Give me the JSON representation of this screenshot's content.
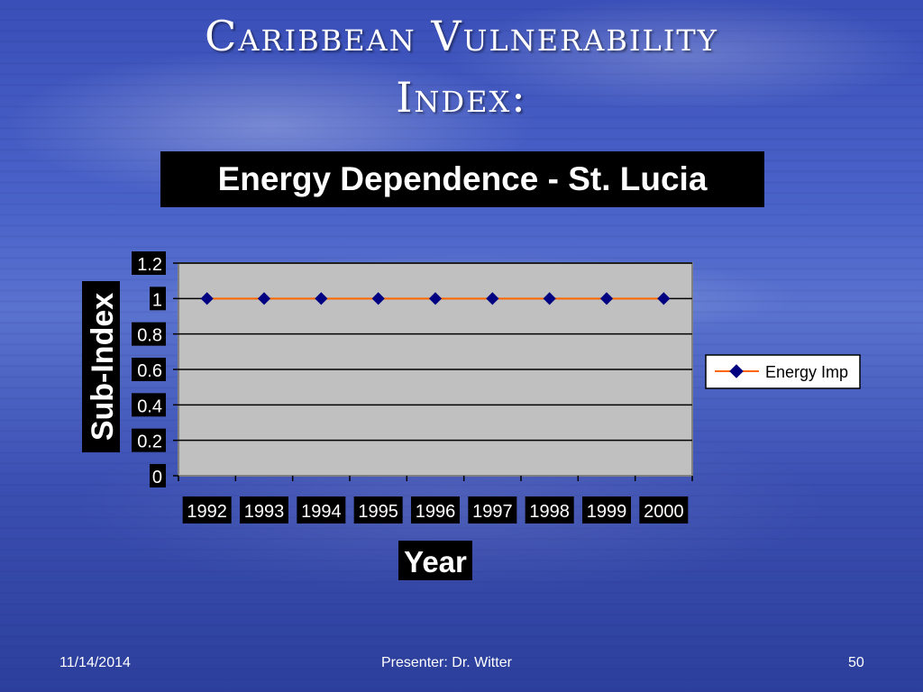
{
  "slide": {
    "title_line1": "Caribbean Vulnerability",
    "title_line2": "Index:",
    "footer_date": "11/14/2014",
    "footer_presenter": "Presenter: Dr. Witter",
    "footer_page": "50"
  },
  "colors": {
    "plot_area": "#c0c0c0",
    "line": "#ff6600",
    "marker": "#000080"
  },
  "chart_data": {
    "type": "line",
    "title": "Energy Dependence - St. Lucia",
    "xlabel": "Year",
    "ylabel": "Sub-Index",
    "categories": [
      "1992",
      "1993",
      "1994",
      "1995",
      "1996",
      "1997",
      "1998",
      "1999",
      "2000"
    ],
    "ylim": [
      0,
      1.2
    ],
    "yticks": [
      "0",
      "0.2",
      "0.4",
      "0.6",
      "0.8",
      "1",
      "1.2"
    ],
    "grid": true,
    "legend_position": "right",
    "series": [
      {
        "name": "Energy Imp",
        "values": [
          1,
          1,
          1,
          1,
          1,
          1,
          1,
          1,
          1
        ]
      }
    ]
  }
}
